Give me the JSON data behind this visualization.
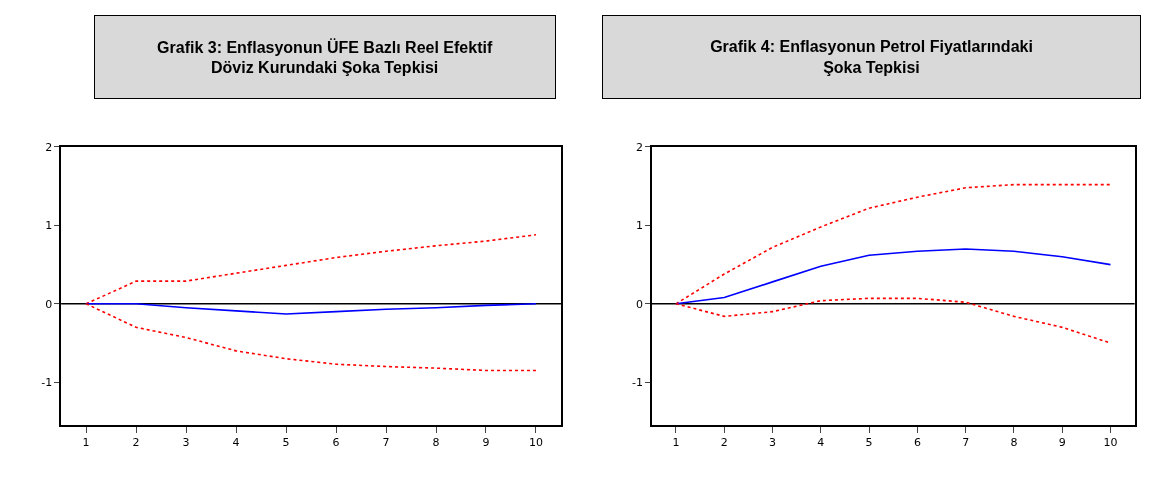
{
  "chart_data": [
    {
      "type": "line",
      "title": "Grafik 3: Enflasyonun ÜFE Bazlı Reel Efektif\nDöviz Kurundaki Şoka Tepkisi",
      "categories": [
        "1",
        "2",
        "3",
        "4",
        "5",
        "6",
        "7",
        "8",
        "9",
        "10"
      ],
      "series": [
        {
          "color": "#ff0000",
          "line_style": "dotted",
          "values": [
            0,
            0.29,
            0.29,
            0.39,
            0.49,
            0.59,
            0.67,
            0.74,
            0.8,
            0.88
          ]
        },
        {
          "color": "#0000ff",
          "line_style": "solid",
          "values": [
            0,
            0,
            -0.05,
            -0.09,
            -0.13,
            -0.1,
            -0.07,
            -0.05,
            -0.02,
            0
          ]
        },
        {
          "color": "#ff0000",
          "line_style": "dotted",
          "values": [
            0,
            -0.3,
            -0.43,
            -0.6,
            -0.7,
            -0.77,
            -0.8,
            -0.82,
            -0.85,
            -0.85
          ]
        }
      ],
      "ylim": [
        -1.55,
        2
      ],
      "yticks": [
        -1,
        0,
        1,
        2
      ],
      "ref_lines": [
        {
          "axis": "y",
          "value": 0,
          "color": "#000000"
        }
      ]
    },
    {
      "type": "line",
      "title": "Grafik 4: Enflasyonun Petrol Fiyatlarındaki\nŞoka Tepkisi",
      "categories": [
        "1",
        "2",
        "3",
        "4",
        "5",
        "6",
        "7",
        "8",
        "9",
        "10"
      ],
      "series": [
        {
          "color": "#ff0000",
          "line_style": "dotted",
          "values": [
            0,
            0.38,
            0.72,
            0.98,
            1.22,
            1.36,
            1.48,
            1.52,
            1.52,
            1.52
          ]
        },
        {
          "color": "#0000ff",
          "line_style": "solid",
          "values": [
            0,
            0.08,
            0.28,
            0.48,
            0.62,
            0.67,
            0.7,
            0.67,
            0.6,
            0.5
          ]
        },
        {
          "color": "#ff0000",
          "line_style": "dotted",
          "values": [
            0,
            -0.16,
            -0.1,
            0.04,
            0.07,
            0.07,
            0.02,
            -0.16,
            -0.3,
            -0.5
          ]
        }
      ],
      "ylim": [
        -1.55,
        2
      ],
      "yticks": [
        -1,
        0,
        1,
        2
      ],
      "ref_lines": [
        {
          "axis": "y",
          "value": 0,
          "color": "#000000"
        }
      ]
    }
  ]
}
